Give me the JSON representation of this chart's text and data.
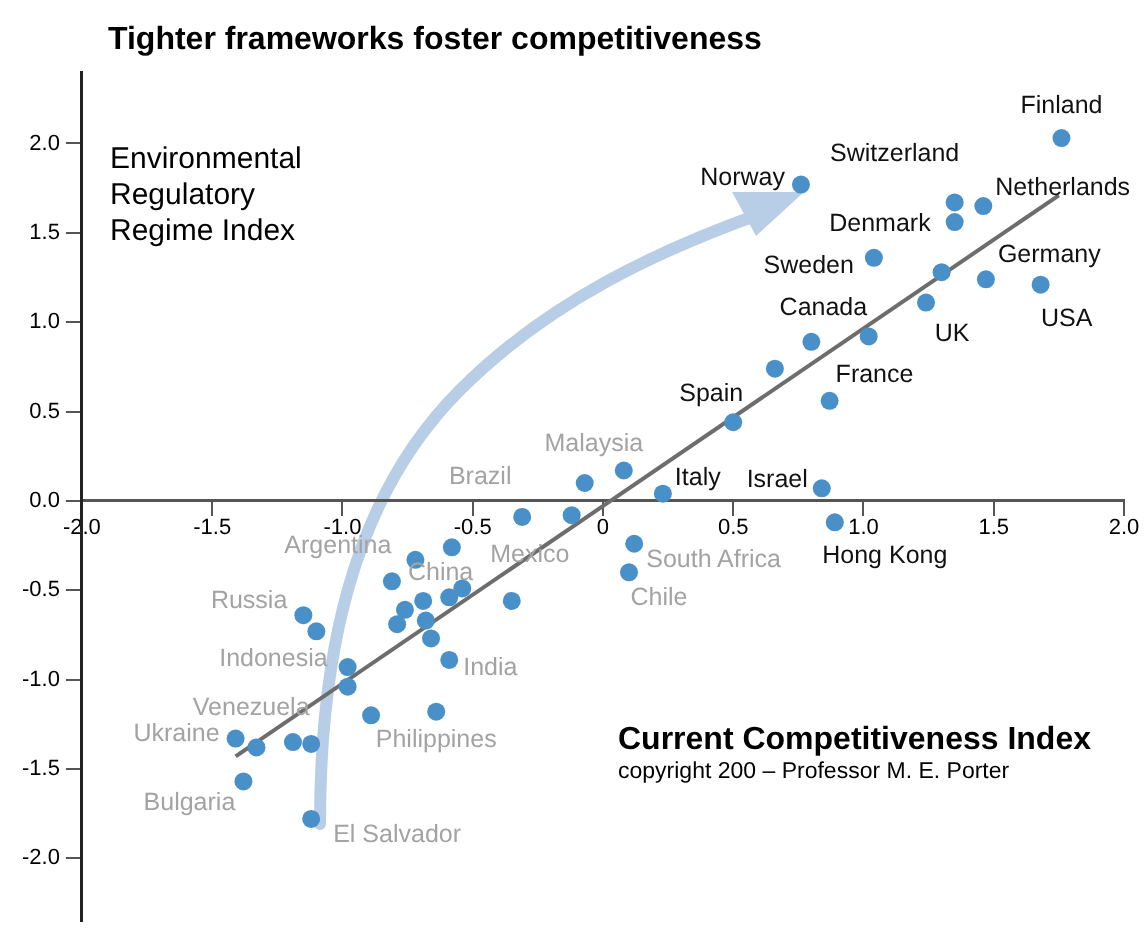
{
  "chart_data": {
    "type": "scatter",
    "title": "Tighter frameworks foster competitiveness",
    "xlabel": "Current Competitiveness Index",
    "ylabel": "Environmental Regulatory Regime Index",
    "xlim": [
      -2.0,
      2.0
    ],
    "ylim": [
      -2.35,
      2.4
    ],
    "xticks": [
      {
        "value": -2,
        "label": "-2.0"
      },
      {
        "value": -1.5,
        "label": "-1.5"
      },
      {
        "value": -1,
        "label": "-1.0"
      },
      {
        "value": -0.5,
        "label": "-0.5"
      },
      0,
      0.5,
      {
        "value": 1,
        "label": "1.0"
      },
      1.5,
      {
        "value": 2,
        "label": "2.0"
      }
    ],
    "yticks": [
      {
        "value": -2,
        "label": "-2.0"
      },
      -1.5,
      {
        "value": -1,
        "label": "-1.0"
      },
      -0.5,
      {
        "value": 0,
        "label": "0.0"
      },
      0.5,
      {
        "value": 1,
        "label": "1.0"
      },
      1.5,
      {
        "value": 2,
        "label": "2.0"
      }
    ],
    "grid": false,
    "legend": false,
    "marker": "circle",
    "series": [
      {
        "color": "#4a90c8",
        "x": [
          1.76,
          0.76,
          1.35,
          1.46,
          1.35,
          1.04,
          1.3,
          1.47,
          1.68,
          1.24,
          0.8,
          1.02,
          0.66,
          0.87,
          0.5,
          -0.07,
          0.08,
          0.23,
          0.84,
          0.89,
          -0.12,
          0.12,
          0.1,
          -0.31,
          -0.58,
          -0.72,
          -0.81,
          -0.69,
          -0.54,
          -0.59,
          -0.35,
          -0.76,
          -0.68,
          -0.79,
          -0.66,
          -0.59,
          -1.15,
          -1.1,
          -0.98,
          -0.98,
          -0.89,
          -0.64,
          -1.41,
          -1.33,
          -1.19,
          -1.12,
          -1.38,
          -1.12
        ],
        "values": [
          2.03,
          1.77,
          1.67,
          1.65,
          1.56,
          1.36,
          1.28,
          1.24,
          1.21,
          1.11,
          0.89,
          0.92,
          0.74,
          0.56,
          0.44,
          0.1,
          0.17,
          0.04,
          0.07,
          -0.12,
          -0.08,
          -0.24,
          -0.4,
          -0.09,
          -0.26,
          -0.33,
          -0.45,
          -0.56,
          -0.49,
          -0.54,
          -0.56,
          -0.61,
          -0.67,
          -0.69,
          -0.77,
          -0.89,
          -0.64,
          -0.73,
          -0.93,
          -1.04,
          -1.2,
          -1.18,
          -1.33,
          -1.38,
          -1.35,
          -1.36,
          -1.57,
          -1.78
        ]
      },
      {
        "type": "line",
        "color": "#6d6d6d",
        "line_style": "solid",
        "marker": "none",
        "x": [
          -1.41,
          1.75
        ],
        "values": [
          -1.43,
          1.71
        ]
      }
    ],
    "annotations": [
      {
        "text": "Finland",
        "x": 1.76,
        "y": 2.03
      },
      {
        "text": "Norway",
        "x": 0.76,
        "y": 1.77
      },
      {
        "text": "Switzerland",
        "x": 1.35,
        "y": 1.67
      },
      {
        "text": "Netherlands",
        "x": 1.46,
        "y": 1.65
      },
      {
        "text": "Denmark",
        "x": 1.35,
        "y": 1.56
      },
      {
        "text": "Sweden",
        "x": 1.04,
        "y": 1.36
      },
      {
        "text": "Germany",
        "x": 1.47,
        "y": 1.24
      },
      {
        "text": "USA",
        "x": 1.68,
        "y": 1.21
      },
      {
        "text": "UK",
        "x": 1.24,
        "y": 1.11
      },
      {
        "text": "Canada",
        "x": 0.8,
        "y": 0.89
      },
      {
        "text": "France",
        "x": 0.87,
        "y": 0.56
      },
      {
        "text": "Spain",
        "x": 0.5,
        "y": 0.44
      },
      {
        "text": "Italy",
        "x": 0.23,
        "y": 0.04
      },
      {
        "text": "Israel",
        "x": 0.84,
        "y": 0.07
      },
      {
        "text": "Hong Kong",
        "x": 0.89,
        "y": -0.12
      },
      {
        "text": "Malaysia",
        "x": 0.08,
        "y": 0.17
      },
      {
        "text": "Brazil",
        "x": -0.31,
        "y": -0.09
      },
      {
        "text": "Argentina",
        "x": -0.72,
        "y": -0.33
      },
      {
        "text": "China",
        "x": -0.81,
        "y": -0.45
      },
      {
        "text": "Mexico",
        "x": -0.35,
        "y": -0.56
      },
      {
        "text": "South Africa",
        "x": 0.12,
        "y": -0.24
      },
      {
        "text": "Chile",
        "x": 0.1,
        "y": -0.4
      },
      {
        "text": "India",
        "x": -0.59,
        "y": -0.89
      },
      {
        "text": "Russia",
        "x": -1.15,
        "y": -0.64
      },
      {
        "text": "Indonesia",
        "x": -0.98,
        "y": -0.93
      },
      {
        "text": "Venezuela",
        "x": -1.12,
        "y": -1.36
      },
      {
        "text": "Ukraine",
        "x": -1.41,
        "y": -1.33
      },
      {
        "text": "Philippines",
        "x": -0.64,
        "y": -1.18
      },
      {
        "text": "Bulgaria",
        "x": -1.38,
        "y": -1.57
      },
      {
        "text": "El Salvador",
        "x": -1.12,
        "y": -1.78
      },
      "copyright 200 – Professor M. E. Porter"
    ]
  }
}
